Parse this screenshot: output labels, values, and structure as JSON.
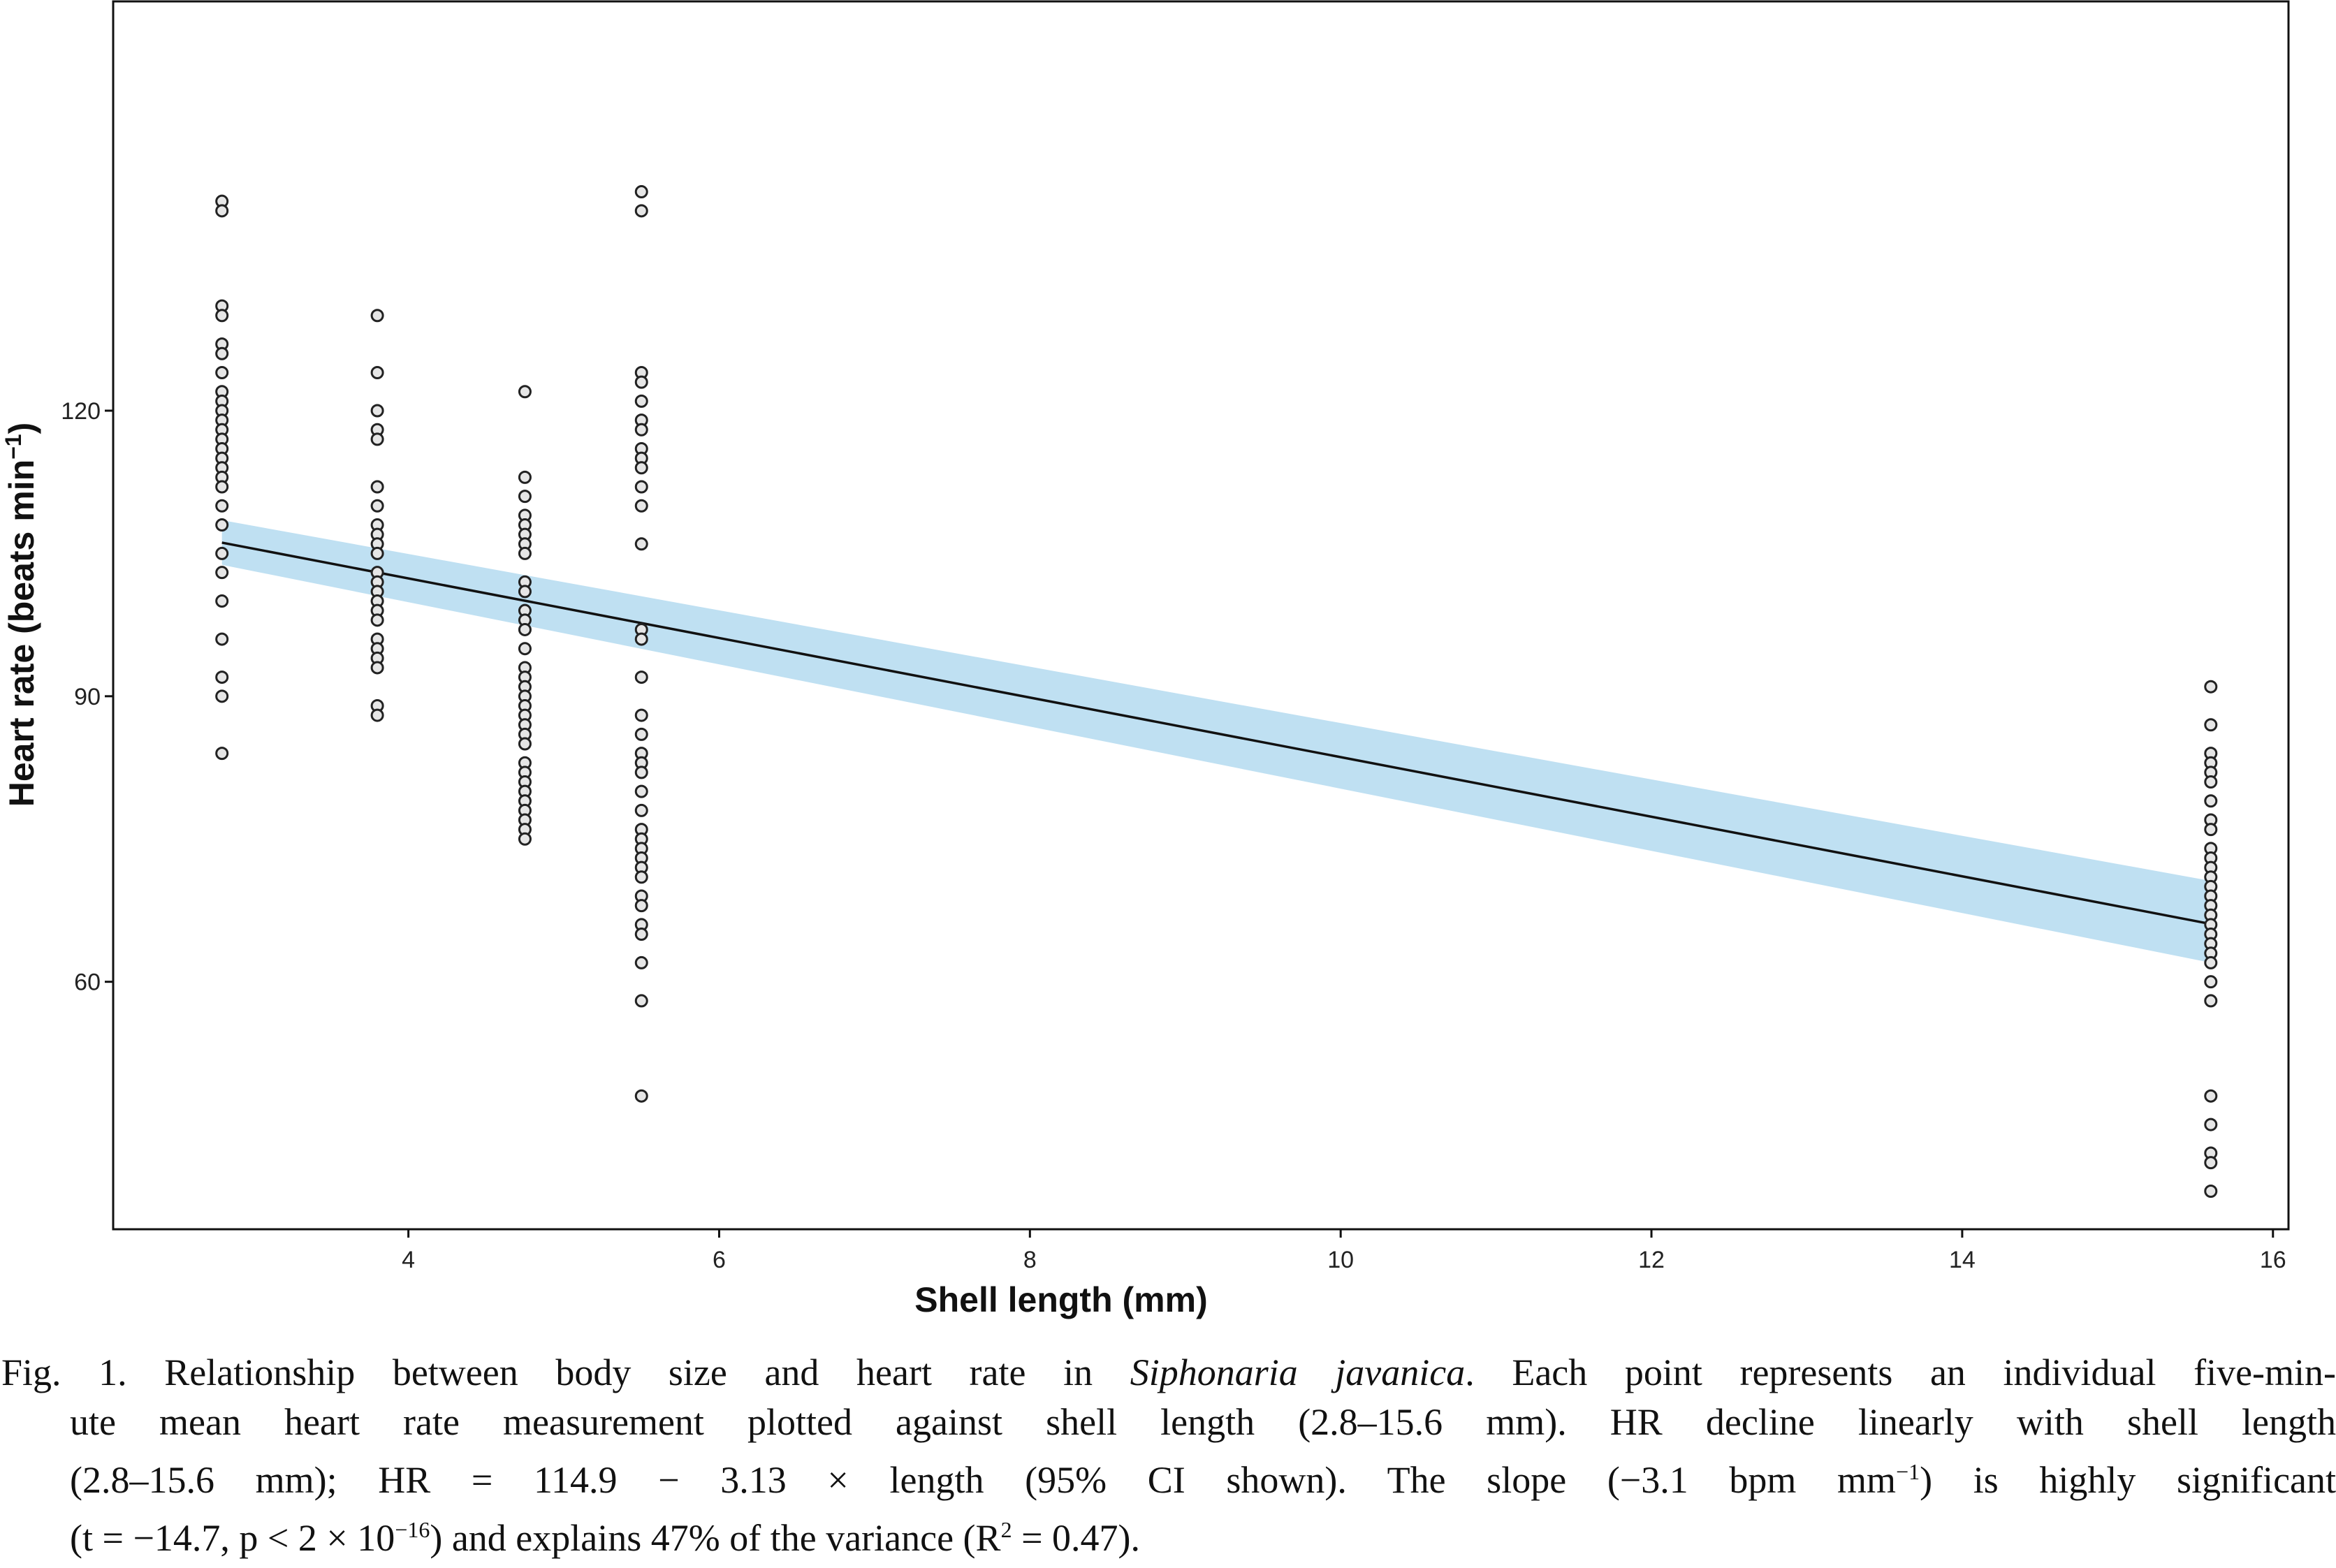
{
  "chart_data": {
    "type": "scatter",
    "xlabel": "Shell length (mm)",
    "ylabel_main": "Heart rate (beats min",
    "ylabel_sup": "−1",
    "ylabel_close": ")",
    "xlim": [
      2.1,
      16.1
    ],
    "ylim": [
      34,
      163
    ],
    "xticks": [
      4,
      6,
      8,
      10,
      12,
      14,
      16
    ],
    "yticks": [
      60,
      90,
      120
    ],
    "grid": false,
    "legend": "none",
    "colors": {
      "points_fill": "#e6e6e6",
      "points_stroke": "#222222",
      "line": "#111111",
      "ci_band": "#bfe0f2",
      "axes": "#111111"
    },
    "fit": {
      "intercept": 114.9,
      "slope": -3.13,
      "x_range": [
        2.8,
        15.6
      ]
    },
    "ci_band": {
      "x": [
        2.8,
        15.6
      ],
      "upper": [
        108.5,
        70.6
      ],
      "lower": [
        103.8,
        62.0
      ]
    },
    "series": [
      {
        "x": 2.8,
        "y": [
          142,
          141,
          131,
          130,
          127,
          126,
          124,
          122,
          121,
          120,
          119,
          118,
          117,
          116,
          115,
          114,
          113,
          112,
          110,
          108,
          105,
          103,
          100,
          96,
          92,
          90,
          84
        ]
      },
      {
        "x": 3.8,
        "y": [
          130,
          124,
          120,
          118,
          117,
          112,
          110,
          108,
          107,
          106,
          105,
          103,
          102,
          101,
          100,
          99,
          98,
          96,
          95,
          94,
          93,
          89,
          88
        ]
      },
      {
        "x": 4.75,
        "y": [
          122,
          113,
          111,
          109,
          108,
          107,
          106,
          105,
          102,
          101,
          99,
          98,
          97,
          95,
          93,
          92,
          91,
          90,
          89,
          88,
          87,
          86,
          85,
          83,
          82,
          81,
          80,
          79,
          78,
          77,
          76,
          75
        ]
      },
      {
        "x": 5.5,
        "y": [
          143,
          141,
          124,
          123,
          121,
          119,
          118,
          116,
          115,
          114,
          112,
          110,
          106,
          97,
          96,
          92,
          88,
          86,
          84,
          83,
          82,
          80,
          78,
          76,
          75,
          74,
          73,
          72,
          71,
          69,
          68,
          66,
          65,
          62,
          58,
          48
        ]
      },
      {
        "x": 15.6,
        "y": [
          91,
          87,
          84,
          83,
          82,
          81,
          79,
          77,
          76,
          74,
          73,
          72,
          71,
          70,
          69,
          68,
          67,
          66,
          65,
          64,
          63,
          62,
          60,
          58,
          48,
          45,
          42,
          41,
          38
        ]
      }
    ]
  },
  "caption": {
    "fig_label": "Fig. 1.",
    "line1_before_species": "Relationship between body size and heart rate in",
    "species": "Siphonaria javanica",
    "line1_after_species": ". Each point represents an individual five-min-",
    "line2": "ute mean heart rate measurement plotted against shell length (2.8–15.6 mm). HR decline linearly with shell length",
    "line3_a": "(2.8–15.6 mm); HR = 114.9 − 3.13 × length (95% CI shown). The slope (−3.1 bpm mm",
    "line3_sup": "−1",
    "line3_b": ") is highly significant",
    "line4_a": "(t = −14.7, p < 2 × 10",
    "line4_sup": "−16",
    "line4_b": ") and explains 47% of the variance (R",
    "line4_sup2": "2",
    "line4_c": " = 0.47)."
  }
}
